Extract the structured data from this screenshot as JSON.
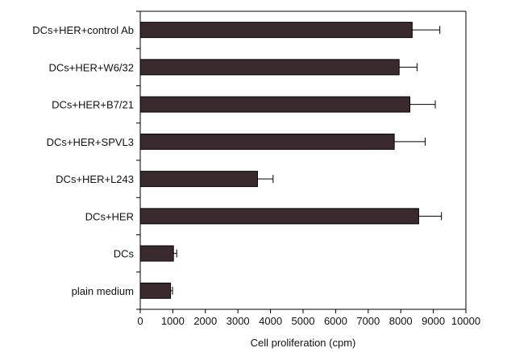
{
  "chart_data": {
    "type": "bar",
    "orientation": "horizontal",
    "title": "",
    "xlabel": "Cell proliferation (cpm)",
    "ylabel": "",
    "xlim": [
      0,
      10000
    ],
    "xticks": [
      0,
      1000,
      2000,
      3000,
      4000,
      5000,
      6000,
      7000,
      8000,
      9000,
      10000
    ],
    "categories": [
      "DCs+HER+control Ab",
      "DCs+HER+W6/32",
      "DCs+HER+B7/21",
      "DCs+HER+SPVL3",
      "DCs+HER+L243",
      "DCs+HER",
      "DCs",
      "plain medium"
    ],
    "values": [
      8350,
      7950,
      8280,
      7800,
      3600,
      8550,
      1020,
      930
    ],
    "errors": [
      850,
      550,
      780,
      950,
      480,
      700,
      100,
      60
    ],
    "bar_color": "#3a2a2e",
    "grid": false,
    "legend": "none"
  }
}
